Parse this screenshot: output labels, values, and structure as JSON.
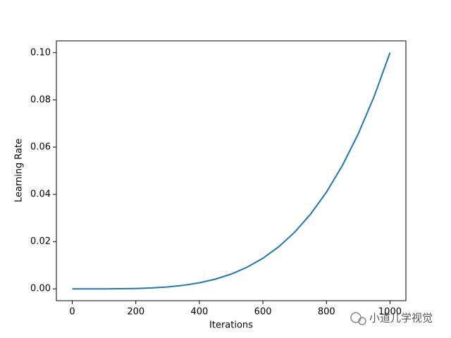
{
  "chart_data": {
    "type": "line",
    "x_label": "Iterations",
    "y_label": "Learning Rate",
    "x": [
      0,
      50,
      100,
      150,
      200,
      250,
      300,
      350,
      400,
      450,
      500,
      550,
      600,
      650,
      700,
      750,
      800,
      850,
      900,
      950,
      1000
    ],
    "series": [
      {
        "color": "#1f77b4",
        "values": [
          0,
          6e-07,
          1e-05,
          5e-05,
          0.00016,
          0.00039,
          0.00081,
          0.0015,
          0.00256,
          0.0041,
          0.00625,
          0.00915,
          0.01296,
          0.01785,
          0.02401,
          0.03164,
          0.04096,
          0.0522,
          0.06561,
          0.08145,
          0.1
        ]
      }
    ],
    "xlim": [
      -50,
      1050
    ],
    "ylim": [
      -0.005,
      0.105
    ],
    "xticks": [
      0,
      200,
      400,
      600,
      800,
      1000
    ],
    "yticks": [
      {
        "value": 0,
        "label": "0.00"
      },
      {
        "value": 0.02,
        "label": "0.02"
      },
      {
        "value": 0.04,
        "label": "0.04"
      },
      {
        "value": 0.06,
        "label": "0.06"
      },
      {
        "value": 0.08,
        "label": "0.08"
      },
      {
        "value": 0.1,
        "label": "0.10"
      }
    ],
    "watermark": "小道儿学视觉"
  }
}
